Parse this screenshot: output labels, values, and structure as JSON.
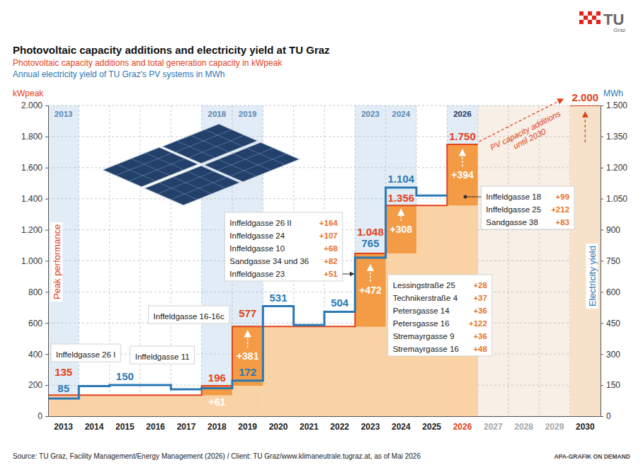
{
  "chart_data": {
    "type": "step",
    "title": "Photovoltaic capacity additions and electricity yield at TU Graz",
    "categories": [
      "2013",
      "2014",
      "2015",
      "2016",
      "2017",
      "2018",
      "2019",
      "2020",
      "2021",
      "2022",
      "2023",
      "2024",
      "2025",
      "2026",
      "2027",
      "2028",
      "2029",
      "2030"
    ],
    "column_labels": [
      "2013",
      null,
      null,
      null,
      null,
      "2018",
      "2019",
      null,
      null,
      null,
      "2023",
      "2024",
      null,
      "2026",
      null,
      null,
      null,
      null
    ],
    "series": [
      {
        "name": "Photovoltaic capacity additions and total generation capacity in kWpeak",
        "type": "area",
        "color": "#e3421b",
        "values": [
          135,
          135,
          135,
          135,
          135,
          196,
          577,
          577,
          577,
          577,
          1048,
          1356,
          1356,
          1750,
          null,
          null,
          null,
          2000
        ],
        "value_labels": [
          "135",
          null,
          null,
          null,
          null,
          "196",
          "577",
          null,
          null,
          null,
          "1.048",
          "1.356",
          null,
          "1.750",
          null,
          null,
          null,
          "2.000"
        ]
      },
      {
        "name": "Annual electricity yield of TU Graz's PV systems in MWh",
        "type": "line",
        "axis": "y2",
        "color": "#2b78b5",
        "values": [
          85,
          145,
          150,
          150,
          130,
          135,
          172,
          531,
          440,
          504,
          765,
          1104,
          1065,
          null,
          null,
          null,
          null,
          null
        ],
        "value_labels": [
          "85",
          null,
          "150",
          null,
          null,
          null,
          "172",
          "531",
          null,
          "504",
          "765",
          "1.104",
          null,
          null,
          null,
          null,
          null,
          null
        ]
      }
    ],
    "additions": {
      "color": "#f39b45",
      "values": [
        null,
        null,
        null,
        null,
        null,
        61,
        381,
        null,
        null,
        null,
        472,
        308,
        null,
        394,
        null,
        null,
        null,
        null
      ],
      "value_labels": [
        null,
        null,
        null,
        null,
        null,
        "+61",
        "+381",
        null,
        null,
        null,
        "+472",
        "+308",
        null,
        "+394",
        null,
        null,
        null,
        null
      ]
    },
    "ylim": [
      0,
      2000
    ],
    "yticks": [
      0,
      200,
      400,
      600,
      800,
      {
        "value": 1000,
        "label": "1.000"
      },
      {
        "value": 1200,
        "label": "1.200"
      },
      {
        "value": 1400,
        "label": "1.400"
      },
      {
        "value": 1600,
        "label": "1.600"
      },
      {
        "value": 1800,
        "label": "1.800"
      },
      {
        "value": 2000,
        "label": "2.000"
      }
    ],
    "y2lim": [
      0,
      1500
    ],
    "y2ticks": [
      0,
      150,
      300,
      450,
      600,
      750,
      900,
      {
        "value": 1050,
        "label": "1.050"
      },
      {
        "value": 1200,
        "label": "1.200"
      },
      {
        "value": 1350,
        "label": "1.350"
      },
      {
        "value": 1500,
        "label": "1.500"
      }
    ],
    "y_label": "kWpeak",
    "y2_label": "MWh",
    "y_title": "Peak performance",
    "y2_title": "Electricity yield",
    "callouts": [
      {
        "category": "2013",
        "items": [
          {
            "label": "Inffeldgasse 26 I"
          }
        ]
      },
      {
        "category": "2018",
        "items": [
          {
            "label": "Inffeldgasse 11"
          }
        ]
      },
      {
        "category": "2019",
        "items": [
          {
            "label": "Inffeldgasse 16-16c"
          }
        ]
      },
      {
        "category": "2023",
        "items": [
          {
            "label": "Inffeldgasse 26 II",
            "addition": "+164"
          },
          {
            "label": "Inffeldgasse 24",
            "addition": "+107"
          },
          {
            "label": "Inffeldgasse 10",
            "addition": "+68"
          },
          {
            "label": "Sandgasse 34 und 36",
            "addition": "+82"
          },
          {
            "label": "Inffeldgasse 23",
            "addition": "+51"
          }
        ]
      },
      {
        "category": "2024",
        "items": [
          {
            "label": "Lessingstraße 25",
            "addition": "+28"
          },
          {
            "label": "Technikerstraße 4",
            "addition": "+37"
          },
          {
            "label": "Petersgasse 14",
            "addition": "+36"
          },
          {
            "label": "Petersgasse 16",
            "addition": "+122"
          },
          {
            "label": "Stremayrgasse 9",
            "addition": "+36"
          },
          {
            "label": "Stremayrgasse 16",
            "addition": "+48"
          }
        ]
      },
      {
        "category": "2026",
        "items": [
          {
            "label": "Inffeldgasse 18",
            "addition": "+99"
          },
          {
            "label": "Inffeldgasse 25",
            "addition": "+212"
          },
          {
            "label": "Sandgasse 38",
            "addition": "+83"
          }
        ]
      }
    ],
    "forecast_annotation": "PV capacity additions until 2030",
    "source": "Source: TU Graz, Facility Management/Energy Management (2026) / Client: TU Graz/www.klimaneutrale.tugraz.at, as of Mai 2026",
    "credit": "APA-GRAFIK ON DEMAND",
    "logo": {
      "text": "TU",
      "subtext": "Graz"
    },
    "grid": true,
    "legend": "top",
    "data_labels": true
  }
}
